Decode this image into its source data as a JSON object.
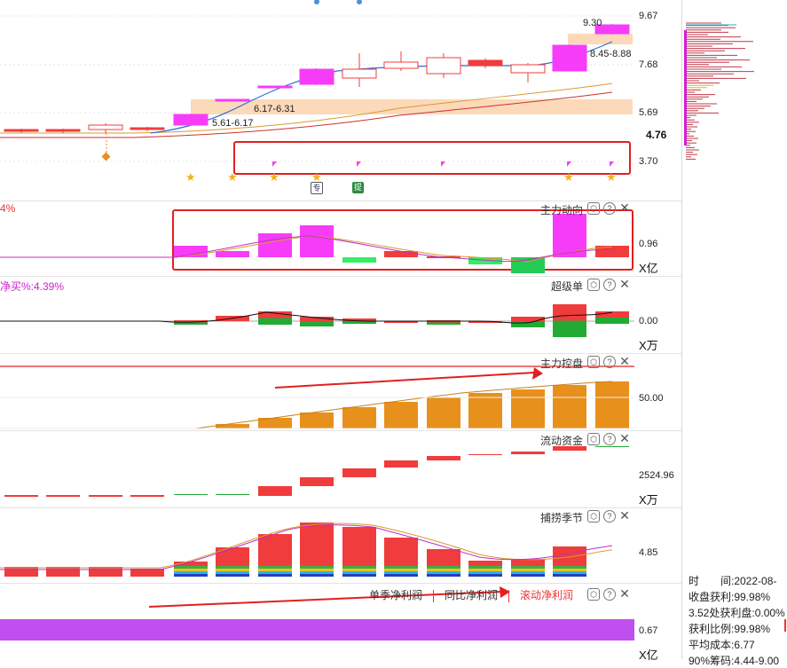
{
  "colors": {
    "up": "#f63cf8",
    "down_red": "#f03c3c",
    "green": "#22aa33",
    "orange_bar": "#e8901c",
    "ma_blue": "#2a6dd8",
    "ma_orange": "#d89a30",
    "ma_red": "#d03030",
    "band": "#fbd9b9",
    "annotation_red": "#e02020"
  },
  "price_panel": {
    "price_labels": [
      "9.67",
      "7.68",
      "5.69",
      "3.70"
    ],
    "current_price": "4.76",
    "annotations": [
      "9.30",
      "8.45-8.88",
      "6.17-6.31",
      "5.61-6.17"
    ],
    "markers": [
      "★",
      "★",
      "★",
      "★",
      "★",
      "★"
    ],
    "badges": [
      "专",
      "提"
    ]
  },
  "main_force": {
    "title": "主力动向",
    "left_text": "4%",
    "value": "0.96",
    "unit": "X亿"
  },
  "super_order": {
    "title": "超级单",
    "left_text": "净买%:4.39%",
    "value": "0.00",
    "unit": "X万"
  },
  "control": {
    "title": "主力控盘",
    "value": "50.00"
  },
  "liquidity": {
    "title": "流动资金",
    "value": "2524.96",
    "unit": "X万"
  },
  "season": {
    "title": "捕捞季节",
    "value": "4.85"
  },
  "profit": {
    "tabs": [
      "单季净利润",
      "同比净利润",
      "滚动净利润"
    ],
    "active_tab": 2,
    "value": "0.67",
    "unit": "X亿"
  },
  "controls": {
    "settings": "⬡",
    "help": "?",
    "close": "✕"
  },
  "info_panel": {
    "time": "时　　间:2022-08-",
    "profit_close": "收盘获利:99.98%",
    "profit_at": "3.52处获利盘:0.00%",
    "profit_ratio": "获利比例:99.98%",
    "avg_cost": "平均成本:6.77",
    "chip": "90%筹码:4.44-9.00"
  }
}
